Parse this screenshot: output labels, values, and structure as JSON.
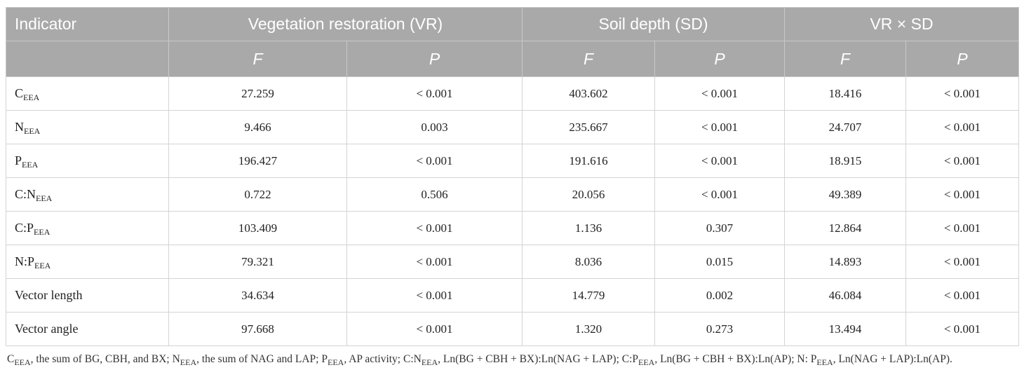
{
  "table": {
    "header": {
      "indicator": "Indicator",
      "groups": [
        "Vegetation restoration (VR)",
        "Soil depth (SD)",
        "VR × SD"
      ],
      "sub": [
        "F",
        "P",
        "F",
        "P",
        "F",
        "P"
      ]
    },
    "rows": [
      {
        "label": "C",
        "sub": "EEA",
        "cells": [
          "27.259",
          "< 0.001",
          "403.602",
          "< 0.001",
          "18.416",
          "< 0.001"
        ]
      },
      {
        "label": "N",
        "sub": "EEA",
        "cells": [
          "9.466",
          "0.003",
          "235.667",
          "< 0.001",
          "24.707",
          "< 0.001"
        ]
      },
      {
        "label": "P",
        "sub": "EEA",
        "cells": [
          "196.427",
          "< 0.001",
          "191.616",
          "< 0.001",
          "18.915",
          "< 0.001"
        ]
      },
      {
        "label": "C:N",
        "sub": "EEA",
        "cells": [
          "0.722",
          "0.506",
          "20.056",
          "< 0.001",
          "49.389",
          "< 0.001"
        ]
      },
      {
        "label": "C:P",
        "sub": "EEA",
        "cells": [
          "103.409",
          "< 0.001",
          "1.136",
          "0.307",
          "12.864",
          "< 0.001"
        ]
      },
      {
        "label": "N:P",
        "sub": "EEA",
        "cells": [
          "79.321",
          "< 0.001",
          "8.036",
          "0.015",
          "14.893",
          "< 0.001"
        ]
      },
      {
        "label": "Vector length",
        "sub": "",
        "cells": [
          "34.634",
          "< 0.001",
          "14.779",
          "0.002",
          "46.084",
          "< 0.001"
        ]
      },
      {
        "label": "Vector angle",
        "sub": "",
        "cells": [
          "97.668",
          "< 0.001",
          "1.320",
          "0.273",
          "13.494",
          "< 0.001"
        ]
      }
    ]
  },
  "footnote": {
    "segments": [
      {
        "t": "C"
      },
      {
        "s": "EEA"
      },
      {
        "t": ", the sum of BG, CBH, and BX; N"
      },
      {
        "s": "EEA"
      },
      {
        "t": ", the sum of NAG and LAP; P"
      },
      {
        "s": "EEA"
      },
      {
        "t": ", AP activity; C:N"
      },
      {
        "s": "EEA"
      },
      {
        "t": ", Ln(BG + CBH + BX):Ln(NAG + LAP); C:P"
      },
      {
        "s": "EEA"
      },
      {
        "t": ", Ln(BG + CBH + BX):Ln(AP); N: P"
      },
      {
        "s": "EEA"
      },
      {
        "t": ", Ln(NAG + LAP):Ln(AP)."
      }
    ]
  }
}
